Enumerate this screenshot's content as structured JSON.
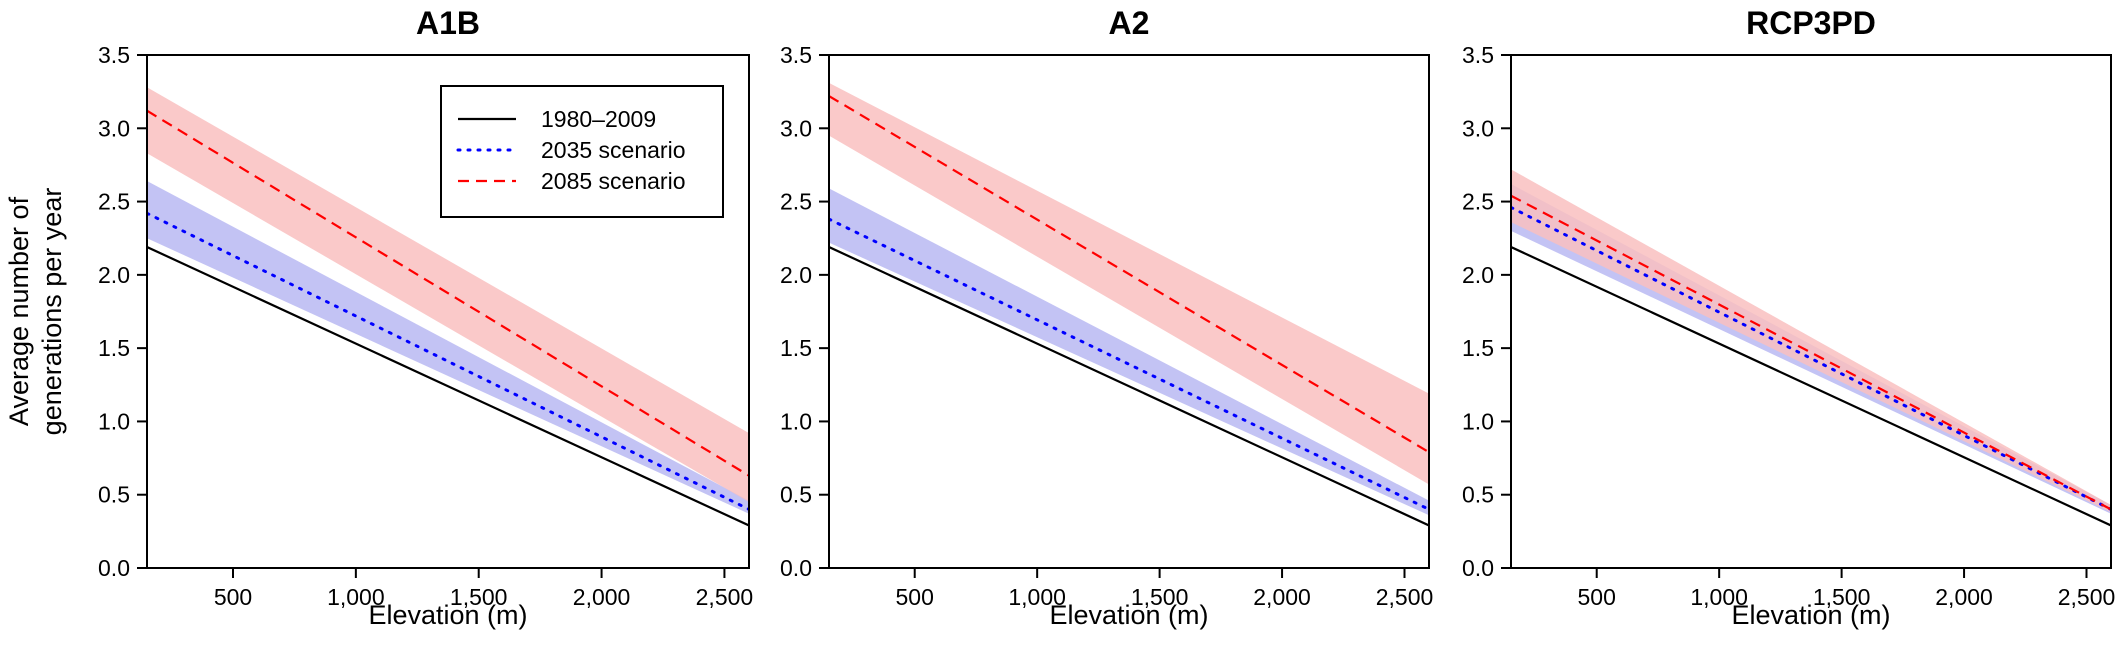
{
  "chart_data": [
    {
      "type": "line",
      "title": "A1B",
      "xlabel": "Elevation (m)",
      "ylabel": [
        "Average number of",
        "generations per year"
      ],
      "xlim": [
        150,
        2600
      ],
      "ylim": [
        0.0,
        3.5
      ],
      "x_ticks": [
        500,
        1000,
        1500,
        2000,
        2500
      ],
      "x_tick_labels": [
        "500",
        "1,000",
        "1,500",
        "2,000",
        "2,500"
      ],
      "y_ticks": [
        0.0,
        0.5,
        1.0,
        1.5,
        2.0,
        2.5,
        3.0,
        3.5
      ],
      "y_tick_labels": [
        "0.0",
        "0.5",
        "1.0",
        "1.5",
        "2.0",
        "2.5",
        "3.0",
        "3.5"
      ],
      "grid": false,
      "legend_position": "top-right",
      "series": [
        {
          "name": "1980–2009",
          "style": "solid",
          "color": "#000000",
          "x": [
            150,
            2600
          ],
          "y": [
            2.19,
            0.29
          ]
        },
        {
          "name": "2035 scenario",
          "style": "dotted",
          "color": "#0000ff",
          "x": [
            150,
            2600
          ],
          "y": [
            2.42,
            0.4
          ],
          "band_lower": [
            2.25,
            0.37
          ],
          "band_upper": [
            2.64,
            0.46
          ],
          "band_color": "#b8b8f2"
        },
        {
          "name": "2085 scenario",
          "style": "dashed",
          "color": "#ff0000",
          "x": [
            150,
            2600
          ],
          "y": [
            3.12,
            0.63
          ],
          "band_lower": [
            2.83,
            0.45
          ],
          "band_upper": [
            3.28,
            0.92
          ],
          "band_color": "#f9c0c0"
        }
      ]
    },
    {
      "type": "line",
      "title": "A2",
      "xlabel": "Elevation (m)",
      "ylabel": [],
      "xlim": [
        150,
        2600
      ],
      "ylim": [
        0.0,
        3.5
      ],
      "x_ticks": [
        500,
        1000,
        1500,
        2000,
        2500
      ],
      "x_tick_labels": [
        "500",
        "1,000",
        "1,500",
        "2,000",
        "2,500"
      ],
      "y_ticks": [
        0.0,
        0.5,
        1.0,
        1.5,
        2.0,
        2.5,
        3.0,
        3.5
      ],
      "y_tick_labels": [
        "0.0",
        "0.5",
        "1.0",
        "1.5",
        "2.0",
        "2.5",
        "3.0",
        "3.5"
      ],
      "grid": false,
      "series": [
        {
          "name": "1980–2009",
          "style": "solid",
          "color": "#000000",
          "x": [
            150,
            2600
          ],
          "y": [
            2.19,
            0.29
          ]
        },
        {
          "name": "2035 scenario",
          "style": "dotted",
          "color": "#0000ff",
          "x": [
            150,
            2600
          ],
          "y": [
            2.38,
            0.4
          ],
          "band_lower": [
            2.22,
            0.36
          ],
          "band_upper": [
            2.59,
            0.46
          ],
          "band_color": "#b8b8f2"
        },
        {
          "name": "2085 scenario",
          "style": "dashed",
          "color": "#ff0000",
          "x": [
            150,
            2600
          ],
          "y": [
            3.22,
            0.79
          ],
          "band_lower": [
            2.95,
            0.57
          ],
          "band_upper": [
            3.31,
            1.19
          ],
          "band_color": "#f9c0c0"
        }
      ]
    },
    {
      "type": "line",
      "title": "RCP3PD",
      "xlabel": "Elevation (m)",
      "ylabel": [],
      "xlim": [
        150,
        2600
      ],
      "ylim": [
        0.0,
        3.5
      ],
      "x_ticks": [
        500,
        1000,
        1500,
        2000,
        2500
      ],
      "x_tick_labels": [
        "500",
        "1,000",
        "1,500",
        "2,000",
        "2,500"
      ],
      "y_ticks": [
        0.0,
        0.5,
        1.0,
        1.5,
        2.0,
        2.5,
        3.0,
        3.5
      ],
      "y_tick_labels": [
        "0.0",
        "0.5",
        "1.0",
        "1.5",
        "2.0",
        "2.5",
        "3.0",
        "3.5"
      ],
      "grid": false,
      "series": [
        {
          "name": "1980–2009",
          "style": "solid",
          "color": "#000000",
          "x": [
            150,
            2600
          ],
          "y": [
            2.19,
            0.29
          ]
        },
        {
          "name": "2035 scenario",
          "style": "dotted",
          "color": "#0000ff",
          "x": [
            150,
            2600
          ],
          "y": [
            2.46,
            0.4
          ],
          "band_lower": [
            2.3,
            0.37
          ],
          "band_upper": [
            2.62,
            0.43
          ],
          "band_color": "#b8b8f2"
        },
        {
          "name": "2085 scenario",
          "style": "dashed",
          "color": "#ff0000",
          "x": [
            150,
            2600
          ],
          "y": [
            2.54,
            0.4
          ],
          "band_lower": [
            2.36,
            0.38
          ],
          "band_upper": [
            2.72,
            0.43
          ],
          "band_color": "#f9c0c0"
        }
      ]
    }
  ]
}
